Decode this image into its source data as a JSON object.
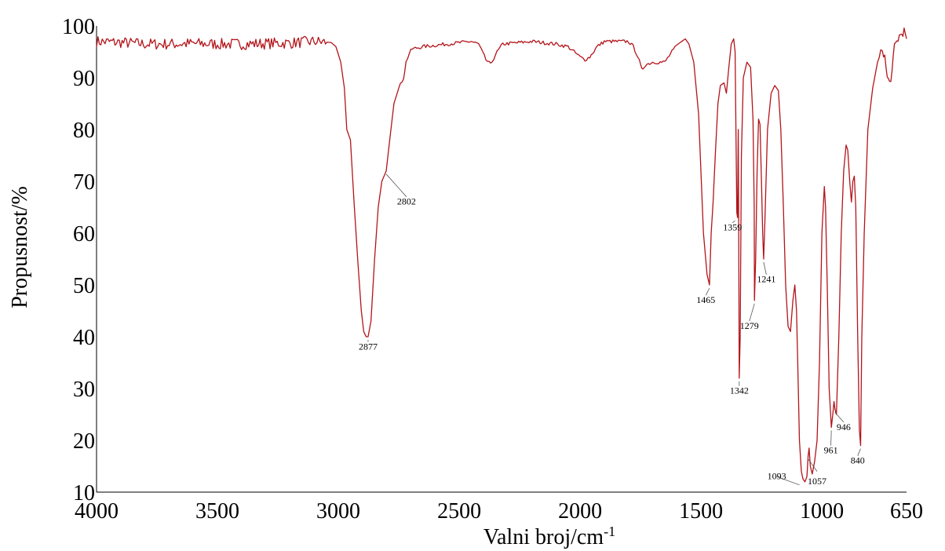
{
  "chart_data": {
    "type": "line",
    "xlabel": "Valni broj/cm",
    "xlabel_sup": "-1",
    "ylabel": "Propusnost/%",
    "xlim": [
      4000,
      650
    ],
    "ylim": [
      10,
      100
    ],
    "x_reversed": true,
    "x_ticks": [
      4000,
      3500,
      3000,
      2500,
      2000,
      1500,
      1000,
      650
    ],
    "y_ticks": [
      10,
      20,
      30,
      40,
      50,
      60,
      70,
      80,
      90,
      100
    ],
    "grid": false,
    "line_color": "#b3141a",
    "series": [
      {
        "values": [
          [
            4000,
            97
          ],
          [
            3900,
            96.8
          ],
          [
            3800,
            96.5
          ],
          [
            3700,
            96.5
          ],
          [
            3600,
            96.6
          ],
          [
            3500,
            96.5
          ],
          [
            3400,
            96.5
          ],
          [
            3300,
            96.6
          ],
          [
            3200,
            96.7
          ],
          [
            3100,
            97
          ],
          [
            3030,
            96.8
          ],
          [
            3010,
            96
          ],
          [
            2990,
            93
          ],
          [
            2975,
            88
          ],
          [
            2965,
            80
          ],
          [
            2950,
            78
          ],
          [
            2935,
            66
          ],
          [
            2920,
            55
          ],
          [
            2905,
            45
          ],
          [
            2895,
            41
          ],
          [
            2885,
            40
          ],
          [
            2877,
            40
          ],
          [
            2865,
            43
          ],
          [
            2850,
            55
          ],
          [
            2835,
            65
          ],
          [
            2820,
            70
          ],
          [
            2802,
            72
          ],
          [
            2785,
            79
          ],
          [
            2770,
            85
          ],
          [
            2750,
            88
          ],
          [
            2730,
            90
          ],
          [
            2720,
            93
          ],
          [
            2700,
            95.5
          ],
          [
            2650,
            96
          ],
          [
            2550,
            96.5
          ],
          [
            2450,
            97
          ],
          [
            2420,
            96.5
          ],
          [
            2390,
            93.5
          ],
          [
            2370,
            92.5
          ],
          [
            2350,
            94.5
          ],
          [
            2320,
            96.5
          ],
          [
            2200,
            97
          ],
          [
            2100,
            96.5
          ],
          [
            2050,
            96
          ],
          [
            2000,
            94
          ],
          [
            1980,
            93.5
          ],
          [
            1960,
            94
          ],
          [
            1930,
            96
          ],
          [
            1900,
            97
          ],
          [
            1800,
            97
          ],
          [
            1780,
            96
          ],
          [
            1760,
            94
          ],
          [
            1745,
            91.5
          ],
          [
            1730,
            92.5
          ],
          [
            1700,
            93
          ],
          [
            1650,
            93
          ],
          [
            1620,
            95
          ],
          [
            1595,
            96.5
          ],
          [
            1580,
            97
          ],
          [
            1565,
            97.5
          ],
          [
            1550,
            96.5
          ],
          [
            1530,
            93
          ],
          [
            1510,
            83
          ],
          [
            1490,
            60
          ],
          [
            1475,
            52
          ],
          [
            1465,
            50
          ],
          [
            1458,
            60
          ],
          [
            1450,
            66
          ],
          [
            1440,
            76
          ],
          [
            1430,
            85
          ],
          [
            1420,
            88.5
          ],
          [
            1405,
            89
          ],
          [
            1395,
            87
          ],
          [
            1385,
            92
          ],
          [
            1375,
            96.5
          ],
          [
            1365,
            97.5
          ],
          [
            1359,
            95
          ],
          [
            1352,
            64
          ],
          [
            1349,
            63
          ],
          [
            1346,
            80
          ],
          [
            1344,
            60
          ],
          [
            1342,
            32
          ],
          [
            1338,
            40
          ],
          [
            1333,
            75
          ],
          [
            1325,
            90
          ],
          [
            1310,
            93
          ],
          [
            1295,
            92
          ],
          [
            1285,
            82
          ],
          [
            1280,
            65
          ],
          [
            1279,
            47
          ],
          [
            1274,
            55
          ],
          [
            1268,
            72
          ],
          [
            1262,
            82
          ],
          [
            1256,
            81
          ],
          [
            1250,
            70
          ],
          [
            1245,
            60
          ],
          [
            1241,
            55
          ],
          [
            1236,
            62
          ],
          [
            1225,
            80
          ],
          [
            1210,
            87
          ],
          [
            1195,
            88.5
          ],
          [
            1180,
            87.5
          ],
          [
            1170,
            80
          ],
          [
            1160,
            66
          ],
          [
            1150,
            50
          ],
          [
            1140,
            42
          ],
          [
            1130,
            41
          ],
          [
            1120,
            47
          ],
          [
            1112,
            50
          ],
          [
            1105,
            45
          ],
          [
            1100,
            35
          ],
          [
            1093,
            20
          ],
          [
            1085,
            14
          ],
          [
            1078,
            12.5
          ],
          [
            1070,
            12
          ],
          [
            1062,
            13
          ],
          [
            1057,
            17
          ],
          [
            1053,
            18.5
          ],
          [
            1048,
            15
          ],
          [
            1040,
            13.5
          ],
          [
            1030,
            16
          ],
          [
            1020,
            20
          ],
          [
            1010,
            35
          ],
          [
            1000,
            60
          ],
          [
            990,
            69
          ],
          [
            985,
            65
          ],
          [
            978,
            50
          ],
          [
            970,
            30
          ],
          [
            961,
            22.5
          ],
          [
            955,
            25
          ],
          [
            950,
            27.5
          ],
          [
            946,
            26
          ],
          [
            940,
            25
          ],
          [
            930,
            40
          ],
          [
            920,
            60
          ],
          [
            910,
            72
          ],
          [
            900,
            77
          ],
          [
            893,
            76
          ],
          [
            885,
            70
          ],
          [
            878,
            66
          ],
          [
            872,
            70
          ],
          [
            866,
            71
          ],
          [
            860,
            65
          ],
          [
            852,
            40
          ],
          [
            845,
            22
          ],
          [
            840,
            19
          ],
          [
            835,
            40
          ],
          [
            825,
            60
          ],
          [
            810,
            80
          ],
          [
            790,
            88
          ],
          [
            770,
            93
          ],
          [
            750,
            95.5
          ],
          [
            740,
            94
          ],
          [
            730,
            90
          ],
          [
            720,
            89
          ],
          [
            710,
            91
          ],
          [
            700,
            96
          ],
          [
            690,
            97
          ],
          [
            680,
            98
          ],
          [
            670,
            98.5
          ],
          [
            660,
            99
          ],
          [
            650,
            97.5
          ]
        ]
      }
    ],
    "annotations": [
      {
        "label": "2877",
        "x": 2877,
        "y": 40,
        "text_x": 2877,
        "text_y": 37.5,
        "line_y": 39
      },
      {
        "label": "2802",
        "x": 2802,
        "y": 72,
        "text_x": 2718,
        "text_y": 65.5,
        "line_y": 67
      },
      {
        "label": "1465",
        "x": 1465,
        "y": 50,
        "text_x": 1480,
        "text_y": 46.5,
        "line_y": 48
      },
      {
        "label": "1359",
        "x": 1359,
        "y": 63,
        "text_x": 1370,
        "text_y": 60.5,
        "line_y": 62
      },
      {
        "label": "1342",
        "x": 1342,
        "y": 32,
        "text_x": 1342,
        "text_y": 29,
        "line_y": 30.5
      },
      {
        "label": "1279",
        "x": 1279,
        "y": 47,
        "text_x": 1300,
        "text_y": 41.5,
        "line_y": 43
      },
      {
        "label": "1241",
        "x": 1241,
        "y": 55,
        "text_x": 1230,
        "text_y": 50.5,
        "line_y": 52
      },
      {
        "label": "1093",
        "x": 1093,
        "y": 12,
        "text_x": 1187,
        "text_y": 12.5,
        "line_y": 13
      },
      {
        "label": "1057",
        "x": 1057,
        "y": 17,
        "text_x": 1020,
        "text_y": 11.5,
        "line_y": 14
      },
      {
        "label": "961",
        "x": 961,
        "y": 22.5,
        "text_x": 963,
        "text_y": 17.5,
        "line_y": 19
      },
      {
        "label": "946",
        "x": 946,
        "y": 26,
        "text_x": 910,
        "text_y": 22,
        "line_y": 23.5
      },
      {
        "label": "840",
        "x": 840,
        "y": 19,
        "text_x": 852,
        "text_y": 15.5,
        "line_y": 17
      }
    ]
  }
}
